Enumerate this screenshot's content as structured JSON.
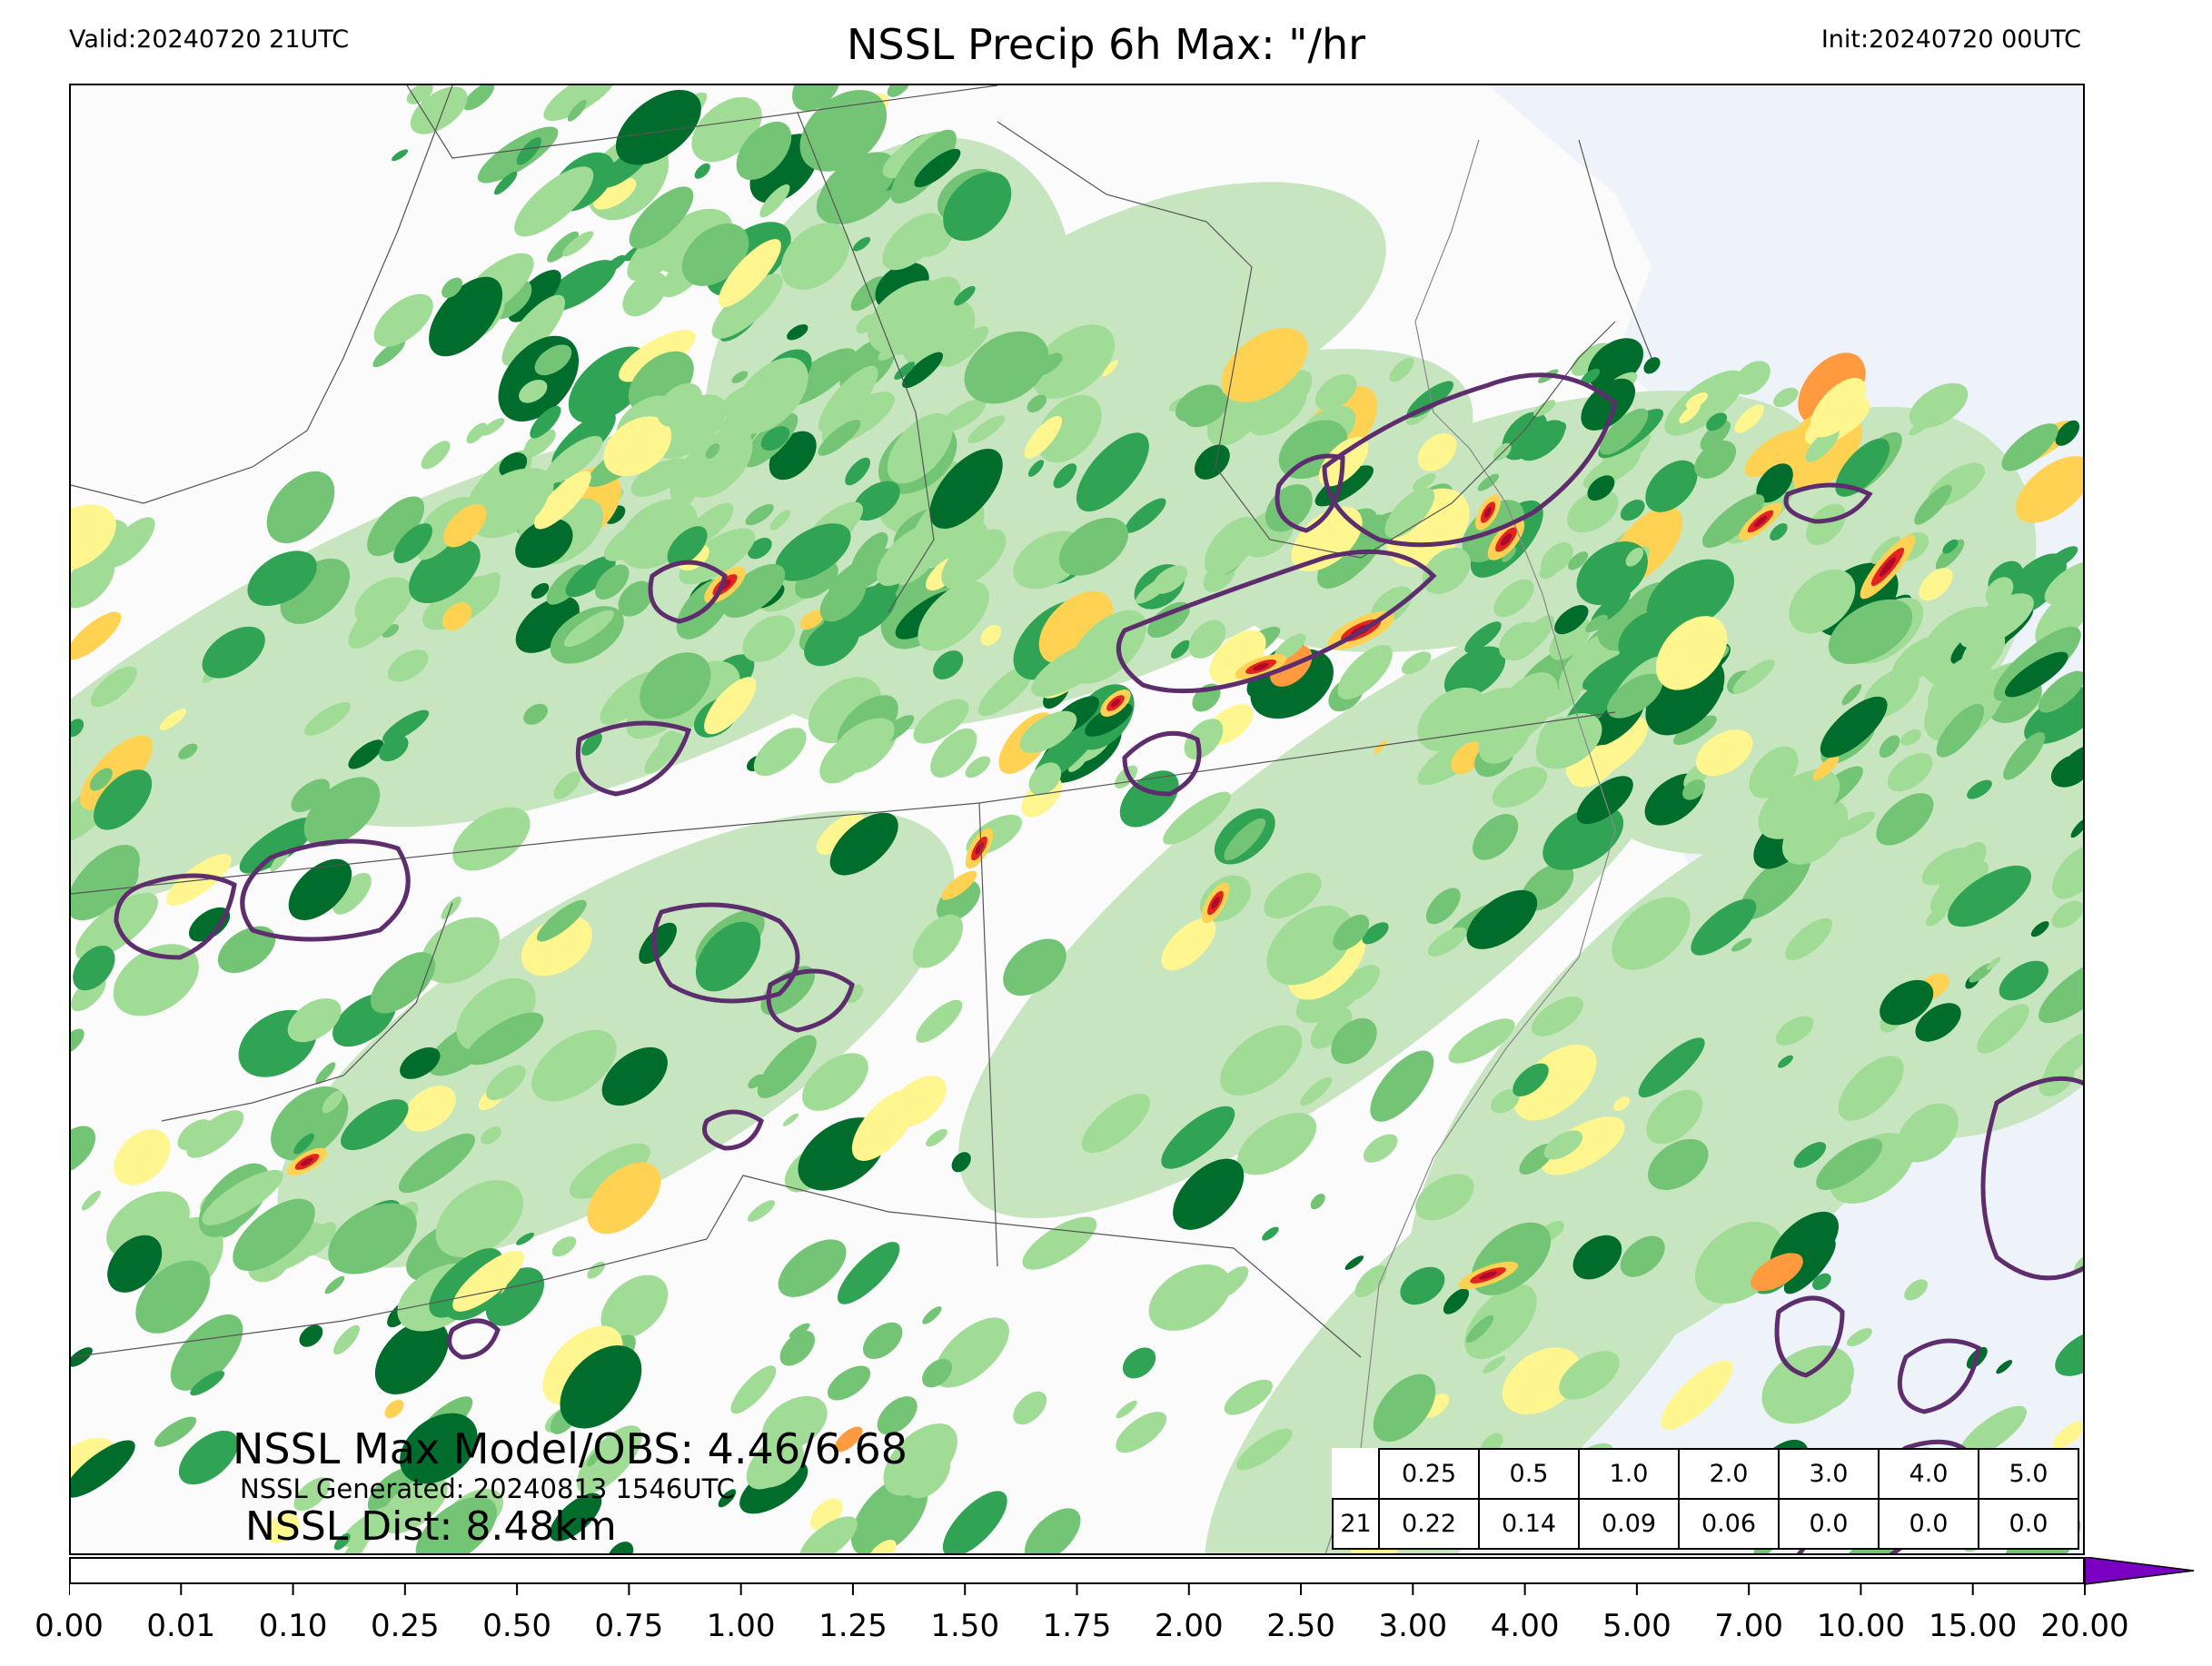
{
  "header": {
    "valid": "Valid:20240720 21UTC",
    "title": "NSSL Precip 6h Max: \"/hr",
    "init": "Init:20240720 00UTC"
  },
  "stats": {
    "max_model_obs": "NSSL Max Model/OBS: 4.46/6.68",
    "generated": "NSSL Generated: 20240813 1546UTC",
    "dist": "NSSL Dist: 8.48km"
  },
  "threshold_table": {
    "row_label": "21",
    "thresholds": [
      "0.25",
      "0.5",
      "1.0",
      "2.0",
      "3.0",
      "4.0",
      "5.0"
    ],
    "values": [
      "0.22",
      "0.14",
      "0.09",
      "0.06",
      "0.0",
      "0.0",
      "0.0"
    ]
  },
  "colorbar": {
    "ticks": [
      "0.00",
      "0.01",
      "0.10",
      "0.25",
      "0.50",
      "0.75",
      "1.00",
      "1.25",
      "1.50",
      "1.75",
      "2.00",
      "2.50",
      "3.00",
      "4.00",
      "5.00",
      "7.00",
      "10.00",
      "15.00",
      "20.00"
    ],
    "colors": [
      "#ffffff",
      "#c7e6c0",
      "#a0dc95",
      "#74c476",
      "#31a354",
      "#006d2c",
      "#fff68f",
      "#ffd254",
      "#ff9a3e",
      "#fe5a2d",
      "#e3251f",
      "#b0082a",
      "#6b0000",
      "#f9b4f2",
      "#f27cf0",
      "#f042ec",
      "#d51aef",
      "#9a0bd8"
    ],
    "extend_color": "#7a00c2"
  },
  "map": {
    "ocean_color": "#eef3fa",
    "land_color": "#fbfbfb",
    "border_color": "#555555",
    "obs_contour_color": "#5e2d6e",
    "precip_palette": [
      "#c7e6c0",
      "#a0dc95",
      "#74c476",
      "#31a354",
      "#006d2c",
      "#fff68f",
      "#ffd254",
      "#ff9a3e",
      "#e3251f",
      "#b0082a"
    ]
  }
}
